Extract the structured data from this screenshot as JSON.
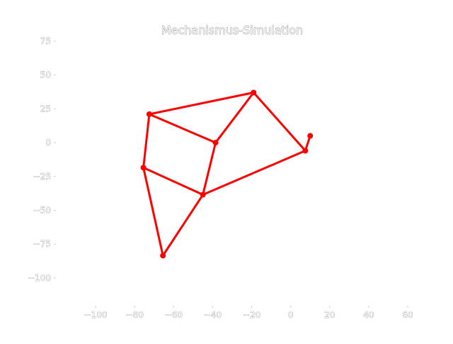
{
  "chart_data": {
    "type": "scatter",
    "title": "Mechanismus-Simulation",
    "xlabel": "",
    "ylabel": "",
    "xlim": [
      -120,
      60
    ],
    "ylim": [
      -120,
      75
    ],
    "x_ticks": [
      -100,
      -80,
      -60,
      -40,
      -20,
      0,
      20,
      40,
      60
    ],
    "x_tick_labels": [
      "−100",
      "−80",
      "−60",
      "−40",
      "−20",
      "0",
      "20",
      "40",
      "60"
    ],
    "y_ticks": [
      75,
      50,
      25,
      0,
      -25,
      -50,
      -75,
      -100
    ],
    "y_tick_labels": [
      "75",
      "50",
      "25",
      "0",
      "−25",
      "−50",
      "−75",
      "−100"
    ],
    "grid": false,
    "color": "#ff0000",
    "points": [
      {
        "id": "P1",
        "x": -72.5,
        "y": 21
      },
      {
        "id": "P2",
        "x": -19,
        "y": 37
      },
      {
        "id": "P3",
        "x": -38.5,
        "y": 0
      },
      {
        "id": "P4",
        "x": -75.5,
        "y": -18.5
      },
      {
        "id": "P5",
        "x": -45,
        "y": -38.5
      },
      {
        "id": "P6",
        "x": -65.5,
        "y": -83.5
      },
      {
        "id": "P7",
        "x": 7.5,
        "y": -6
      },
      {
        "id": "P8",
        "x": 10,
        "y": 5
      }
    ],
    "links": [
      [
        "P1",
        "P2"
      ],
      [
        "P1",
        "P4"
      ],
      [
        "P1",
        "P3"
      ],
      [
        "P2",
        "P3"
      ],
      [
        "P2",
        "P7"
      ],
      [
        "P3",
        "P5"
      ],
      [
        "P4",
        "P5"
      ],
      [
        "P4",
        "P6"
      ],
      [
        "P5",
        "P6"
      ],
      [
        "P5",
        "P7"
      ],
      [
        "P7",
        "P8"
      ]
    ]
  }
}
